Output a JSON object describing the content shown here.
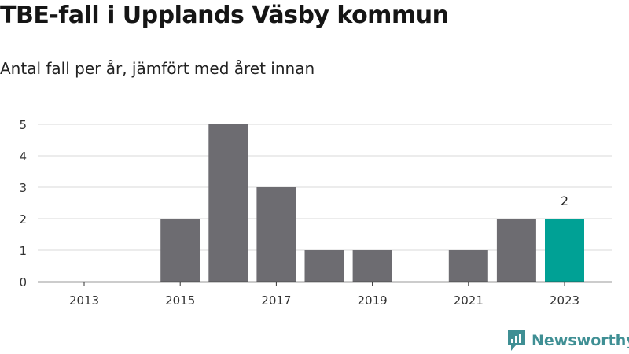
{
  "header": {
    "title": "TBE-fall i Upplands Väsby kommun",
    "subtitle": "Antal fall per år, jämfört med året innan"
  },
  "brand": {
    "name": "Newsworthy",
    "icon": "newsworthy-logo-icon",
    "color": "#3f8f94"
  },
  "chart_data": {
    "type": "bar",
    "title": "TBE-fall i Upplands Väsby kommun",
    "subtitle": "Antal fall per år, jämfört med året innan",
    "categories": [
      "2013",
      "2014",
      "2015",
      "2016",
      "2017",
      "2018",
      "2019",
      "2020",
      "2021",
      "2022",
      "2023"
    ],
    "values": [
      0,
      0,
      2,
      5,
      3,
      1,
      1,
      0,
      1,
      2,
      2
    ],
    "x_tick_labels": [
      "2013",
      "2015",
      "2017",
      "2019",
      "2021",
      "2023"
    ],
    "ylim": [
      0,
      5
    ],
    "y_ticks": [
      0,
      1,
      2,
      3,
      4,
      5
    ],
    "data_labels": [
      {
        "category": "2023",
        "value": "2"
      }
    ],
    "highlight_category": "2023",
    "bar_color": "#6d6c71",
    "highlight_color": "#00a195",
    "grid": true,
    "xlabel": "",
    "ylabel": ""
  }
}
